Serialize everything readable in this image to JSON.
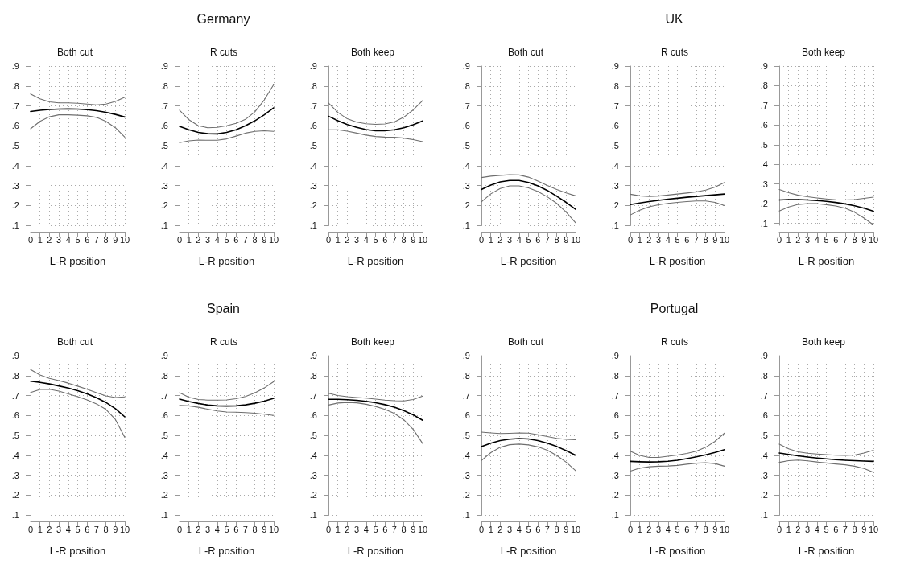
{
  "chart_data": [
    {
      "type": "line",
      "subtitle": "Both cut",
      "xlabel": "L-R position",
      "x": [
        0,
        1,
        2,
        3,
        4,
        5,
        6,
        7,
        8,
        9,
        10
      ],
      "xlim": [
        0,
        10
      ],
      "xticks": [
        0,
        1,
        2,
        3,
        4,
        5,
        6,
        7,
        8,
        9,
        10
      ],
      "ylim": [
        0.1,
        0.9
      ],
      "yticks": [
        {
          "value": 0.1,
          "label": ".1"
        },
        {
          "value": 0.2,
          "label": ".2"
        },
        {
          "value": 0.3,
          "label": ".3"
        },
        {
          "value": 0.4,
          "label": ".4"
        },
        {
          "value": 0.5,
          "label": ".5"
        },
        {
          "value": 0.6,
          "label": ".6"
        },
        {
          "value": 0.7,
          "label": ".7"
        },
        {
          "value": 0.8,
          "label": ".8"
        },
        {
          "value": 0.9,
          "label": ".9"
        }
      ],
      "grid": true,
      "marker": "none",
      "line_style": "solid",
      "series": [
        {
          "color": "#6e6e6e",
          "values": [
            0.585,
            0.622,
            0.645,
            0.655,
            0.655,
            0.653,
            0.65,
            0.642,
            0.622,
            0.59,
            0.543
          ]
        },
        {
          "color": "#6e6e6e",
          "values": [
            0.76,
            0.735,
            0.72,
            0.715,
            0.715,
            0.713,
            0.709,
            0.705,
            0.709,
            0.722,
            0.743
          ]
        },
        {
          "color": "#000000",
          "values": [
            0.672,
            0.678,
            0.682,
            0.684,
            0.685,
            0.684,
            0.681,
            0.676,
            0.668,
            0.657,
            0.644
          ]
        }
      ]
    },
    {
      "type": "line",
      "title": "Germany",
      "subtitle": "R cuts",
      "xlabel": "L-R position",
      "x": [
        0,
        1,
        2,
        3,
        4,
        5,
        6,
        7,
        8,
        9,
        10
      ],
      "xlim": [
        0,
        10
      ],
      "xticks": [
        0,
        1,
        2,
        3,
        4,
        5,
        6,
        7,
        8,
        9,
        10
      ],
      "ylim": [
        0.1,
        0.9
      ],
      "yticks": [
        {
          "value": 0.1,
          "label": ".1"
        },
        {
          "value": 0.2,
          "label": ".2"
        },
        {
          "value": 0.3,
          "label": ".3"
        },
        {
          "value": 0.4,
          "label": ".4"
        },
        {
          "value": 0.5,
          "label": ".5"
        },
        {
          "value": 0.6,
          "label": ".6"
        },
        {
          "value": 0.7,
          "label": ".7"
        },
        {
          "value": 0.8,
          "label": ".8"
        },
        {
          "value": 0.9,
          "label": ".9"
        }
      ],
      "grid": true,
      "marker": "none",
      "line_style": "solid",
      "series": [
        {
          "color": "#6e6e6e",
          "values": [
            0.515,
            0.524,
            0.528,
            0.527,
            0.527,
            0.534,
            0.548,
            0.563,
            0.572,
            0.575,
            0.572
          ]
        },
        {
          "color": "#6e6e6e",
          "values": [
            0.678,
            0.63,
            0.6,
            0.59,
            0.592,
            0.6,
            0.612,
            0.632,
            0.67,
            0.73,
            0.807
          ]
        },
        {
          "color": "#000000",
          "values": [
            0.597,
            0.58,
            0.567,
            0.56,
            0.559,
            0.567,
            0.58,
            0.6,
            0.625,
            0.655,
            0.69
          ]
        }
      ]
    },
    {
      "type": "line",
      "subtitle": "Both keep",
      "xlabel": "L-R position",
      "x": [
        0,
        1,
        2,
        3,
        4,
        5,
        6,
        7,
        8,
        9,
        10
      ],
      "xlim": [
        0,
        10
      ],
      "xticks": [
        0,
        1,
        2,
        3,
        4,
        5,
        6,
        7,
        8,
        9,
        10
      ],
      "ylim": [
        0.1,
        0.9
      ],
      "yticks": [
        {
          "value": 0.1,
          "label": ".1"
        },
        {
          "value": 0.2,
          "label": ".2"
        },
        {
          "value": 0.3,
          "label": ".3"
        },
        {
          "value": 0.4,
          "label": ".4"
        },
        {
          "value": 0.5,
          "label": ".5"
        },
        {
          "value": 0.6,
          "label": ".6"
        },
        {
          "value": 0.7,
          "label": ".7"
        },
        {
          "value": 0.8,
          "label": ".8"
        },
        {
          "value": 0.9,
          "label": ".9"
        }
      ],
      "grid": true,
      "marker": "none",
      "line_style": "solid",
      "series": [
        {
          "color": "#6e6e6e",
          "values": [
            0.58,
            0.58,
            0.573,
            0.563,
            0.553,
            0.546,
            0.543,
            0.542,
            0.538,
            0.53,
            0.52
          ]
        },
        {
          "color": "#6e6e6e",
          "values": [
            0.715,
            0.667,
            0.635,
            0.618,
            0.61,
            0.607,
            0.609,
            0.619,
            0.643,
            0.68,
            0.727
          ]
        },
        {
          "color": "#000000",
          "values": [
            0.648,
            0.625,
            0.606,
            0.592,
            0.581,
            0.575,
            0.575,
            0.58,
            0.59,
            0.605,
            0.624
          ]
        }
      ]
    },
    {
      "type": "line",
      "subtitle": "Both cut",
      "xlabel": "L-R position",
      "x": [
        0,
        1,
        2,
        3,
        4,
        5,
        6,
        7,
        8,
        9,
        10
      ],
      "xlim": [
        0,
        10
      ],
      "xticks": [
        0,
        1,
        2,
        3,
        4,
        5,
        6,
        7,
        8,
        9,
        10
      ],
      "ylim": [
        0.1,
        0.9
      ],
      "yticks": [
        {
          "value": 0.1,
          "label": ".1"
        },
        {
          "value": 0.2,
          "label": ".2"
        },
        {
          "value": 0.3,
          "label": ".3"
        },
        {
          "value": 0.4,
          "label": ".4"
        },
        {
          "value": 0.5,
          "label": ".5"
        },
        {
          "value": 0.6,
          "label": ".6"
        },
        {
          "value": 0.7,
          "label": ".7"
        },
        {
          "value": 0.8,
          "label": ".8"
        },
        {
          "value": 0.9,
          "label": ".9"
        }
      ],
      "grid": true,
      "marker": "none",
      "line_style": "solid",
      "series": [
        {
          "color": "#6e6e6e",
          "values": [
            0.218,
            0.258,
            0.285,
            0.298,
            0.298,
            0.288,
            0.27,
            0.243,
            0.21,
            0.166,
            0.113
          ]
        },
        {
          "color": "#6e6e6e",
          "values": [
            0.34,
            0.347,
            0.351,
            0.354,
            0.353,
            0.342,
            0.322,
            0.3,
            0.28,
            0.263,
            0.248
          ]
        },
        {
          "color": "#000000",
          "values": [
            0.28,
            0.302,
            0.318,
            0.325,
            0.325,
            0.315,
            0.298,
            0.275,
            0.246,
            0.215,
            0.18
          ]
        }
      ]
    },
    {
      "type": "line",
      "title": "UK",
      "subtitle": "R cuts",
      "xlabel": "L-R position",
      "x": [
        0,
        1,
        2,
        3,
        4,
        5,
        6,
        7,
        8,
        9,
        10
      ],
      "xlim": [
        0,
        10
      ],
      "xticks": [
        0,
        1,
        2,
        3,
        4,
        5,
        6,
        7,
        8,
        9,
        10
      ],
      "ylim": [
        0.1,
        0.9
      ],
      "yticks": [
        {
          "value": 0.1,
          "label": ".1"
        },
        {
          "value": 0.2,
          "label": ".2"
        },
        {
          "value": 0.3,
          "label": ".3"
        },
        {
          "value": 0.4,
          "label": ".4"
        },
        {
          "value": 0.5,
          "label": ".5"
        },
        {
          "value": 0.6,
          "label": ".6"
        },
        {
          "value": 0.7,
          "label": ".7"
        },
        {
          "value": 0.8,
          "label": ".8"
        },
        {
          "value": 0.9,
          "label": ".9"
        }
      ],
      "grid": true,
      "marker": "none",
      "line_style": "solid",
      "series": [
        {
          "color": "#6e6e6e",
          "values": [
            0.152,
            0.176,
            0.193,
            0.203,
            0.21,
            0.215,
            0.219,
            0.222,
            0.222,
            0.215,
            0.199
          ]
        },
        {
          "color": "#6e6e6e",
          "values": [
            0.256,
            0.248,
            0.245,
            0.247,
            0.252,
            0.257,
            0.262,
            0.268,
            0.277,
            0.292,
            0.315
          ]
        },
        {
          "color": "#000000",
          "values": [
            0.204,
            0.212,
            0.219,
            0.225,
            0.231,
            0.236,
            0.241,
            0.245,
            0.249,
            0.253,
            0.257
          ]
        }
      ]
    },
    {
      "type": "line",
      "subtitle": "Both keep",
      "xlabel": "L-R position",
      "x": [
        0,
        1,
        2,
        3,
        4,
        5,
        6,
        7,
        8,
        9,
        10
      ],
      "xlim": [
        0,
        10
      ],
      "xticks": [
        0,
        1,
        2,
        3,
        4,
        5,
        6,
        7,
        8,
        9,
        10
      ],
      "ylim": [
        0.09,
        0.9
      ],
      "yticks": [
        {
          "value": 0.1,
          "label": ".1"
        },
        {
          "value": 0.2,
          "label": ".2"
        },
        {
          "value": 0.3,
          "label": ".3"
        },
        {
          "value": 0.4,
          "label": ".4"
        },
        {
          "value": 0.5,
          "label": ".5"
        },
        {
          "value": 0.6,
          "label": ".6"
        },
        {
          "value": 0.7,
          "label": ".7"
        },
        {
          "value": 0.8,
          "label": ".8"
        },
        {
          "value": 0.9,
          "label": ".9"
        }
      ],
      "grid": true,
      "marker": "none",
      "line_style": "solid",
      "series": [
        {
          "color": "#6e6e6e",
          "values": [
            0.163,
            0.183,
            0.196,
            0.2,
            0.2,
            0.195,
            0.188,
            0.177,
            0.156,
            0.127,
            0.092
          ]
        },
        {
          "color": "#6e6e6e",
          "values": [
            0.272,
            0.256,
            0.243,
            0.235,
            0.229,
            0.224,
            0.22,
            0.219,
            0.221,
            0.227,
            0.233
          ]
        },
        {
          "color": "#000000",
          "values": [
            0.219,
            0.221,
            0.221,
            0.219,
            0.216,
            0.212,
            0.206,
            0.199,
            0.189,
            0.177,
            0.162
          ]
        }
      ]
    },
    {
      "type": "line",
      "subtitle": "Both cut",
      "xlabel": "L-R position",
      "x": [
        0,
        1,
        2,
        3,
        4,
        5,
        6,
        7,
        8,
        9,
        10
      ],
      "xlim": [
        0,
        10
      ],
      "xticks": [
        0,
        1,
        2,
        3,
        4,
        5,
        6,
        7,
        8,
        9,
        10
      ],
      "ylim": [
        0.1,
        0.9
      ],
      "yticks": [
        {
          "value": 0.1,
          "label": ".1"
        },
        {
          "value": 0.2,
          "label": ".2"
        },
        {
          "value": 0.3,
          "label": ".3"
        },
        {
          "value": 0.4,
          "label": ".4"
        },
        {
          "value": 0.5,
          "label": ".5"
        },
        {
          "value": 0.6,
          "label": ".6"
        },
        {
          "value": 0.7,
          "label": ".7"
        },
        {
          "value": 0.8,
          "label": ".8"
        },
        {
          "value": 0.9,
          "label": ".9"
        }
      ],
      "grid": true,
      "marker": "none",
      "line_style": "solid",
      "series": [
        {
          "color": "#6e6e6e",
          "values": [
            0.715,
            0.73,
            0.731,
            0.722,
            0.708,
            0.694,
            0.678,
            0.658,
            0.63,
            0.58,
            0.49
          ]
        },
        {
          "color": "#6e6e6e",
          "values": [
            0.83,
            0.803,
            0.786,
            0.775,
            0.762,
            0.747,
            0.731,
            0.714,
            0.698,
            0.69,
            0.693
          ]
        },
        {
          "color": "#000000",
          "values": [
            0.772,
            0.766,
            0.758,
            0.748,
            0.737,
            0.724,
            0.708,
            0.689,
            0.665,
            0.634,
            0.593
          ]
        }
      ]
    },
    {
      "type": "line",
      "title": "Spain",
      "subtitle": "R cuts",
      "xlabel": "L-R position",
      "x": [
        0,
        1,
        2,
        3,
        4,
        5,
        6,
        7,
        8,
        9,
        10
      ],
      "xlim": [
        0,
        10
      ],
      "xticks": [
        0,
        1,
        2,
        3,
        4,
        5,
        6,
        7,
        8,
        9,
        10
      ],
      "ylim": [
        0.1,
        0.9
      ],
      "yticks": [
        {
          "value": 0.1,
          "label": ".1"
        },
        {
          "value": 0.2,
          "label": ".2"
        },
        {
          "value": 0.3,
          "label": ".3"
        },
        {
          "value": 0.4,
          "label": ".4"
        },
        {
          "value": 0.5,
          "label": ".5"
        },
        {
          "value": 0.6,
          "label": ".6"
        },
        {
          "value": 0.7,
          "label": ".7"
        },
        {
          "value": 0.8,
          "label": ".8"
        },
        {
          "value": 0.9,
          "label": ".9"
        }
      ],
      "grid": true,
      "marker": "none",
      "line_style": "solid",
      "series": [
        {
          "color": "#6e6e6e",
          "values": [
            0.65,
            0.648,
            0.641,
            0.631,
            0.622,
            0.617,
            0.616,
            0.614,
            0.611,
            0.606,
            0.6
          ]
        },
        {
          "color": "#6e6e6e",
          "values": [
            0.714,
            0.691,
            0.68,
            0.677,
            0.677,
            0.678,
            0.684,
            0.695,
            0.713,
            0.738,
            0.77
          ]
        },
        {
          "color": "#000000",
          "values": [
            0.682,
            0.67,
            0.66,
            0.652,
            0.648,
            0.647,
            0.648,
            0.653,
            0.661,
            0.672,
            0.686
          ]
        }
      ]
    },
    {
      "type": "line",
      "subtitle": "Both keep",
      "xlabel": "L-R position",
      "x": [
        0,
        1,
        2,
        3,
        4,
        5,
        6,
        7,
        8,
        9,
        10
      ],
      "xlim": [
        0,
        10
      ],
      "xticks": [
        0,
        1,
        2,
        3,
        4,
        5,
        6,
        7,
        8,
        9,
        10
      ],
      "ylim": [
        0.1,
        0.9
      ],
      "yticks": [
        {
          "value": 0.1,
          "label": ".1"
        },
        {
          "value": 0.2,
          "label": ".2"
        },
        {
          "value": 0.3,
          "label": ".3"
        },
        {
          "value": 0.4,
          "label": ".4"
        },
        {
          "value": 0.5,
          "label": ".5"
        },
        {
          "value": 0.6,
          "label": ".6"
        },
        {
          "value": 0.7,
          "label": ".7"
        },
        {
          "value": 0.8,
          "label": ".8"
        },
        {
          "value": 0.9,
          "label": ".9"
        }
      ],
      "grid": true,
      "marker": "none",
      "line_style": "solid",
      "series": [
        {
          "color": "#6e6e6e",
          "values": [
            0.652,
            0.662,
            0.665,
            0.663,
            0.656,
            0.645,
            0.63,
            0.61,
            0.578,
            0.53,
            0.459
          ]
        },
        {
          "color": "#6e6e6e",
          "values": [
            0.711,
            0.7,
            0.694,
            0.69,
            0.687,
            0.682,
            0.677,
            0.674,
            0.673,
            0.68,
            0.697
          ]
        },
        {
          "color": "#000000",
          "values": [
            0.681,
            0.681,
            0.679,
            0.676,
            0.671,
            0.664,
            0.654,
            0.641,
            0.624,
            0.603,
            0.576
          ]
        }
      ]
    },
    {
      "type": "line",
      "subtitle": "Both cut",
      "xlabel": "L-R position",
      "x": [
        0,
        1,
        2,
        3,
        4,
        5,
        6,
        7,
        8,
        9,
        10
      ],
      "xlim": [
        0,
        10
      ],
      "xticks": [
        0,
        1,
        2,
        3,
        4,
        5,
        6,
        7,
        8,
        9,
        10
      ],
      "ylim": [
        0.1,
        0.9
      ],
      "yticks": [
        {
          "value": 0.1,
          "label": ".1"
        },
        {
          "value": 0.2,
          "label": ".2"
        },
        {
          "value": 0.3,
          "label": ".3"
        },
        {
          "value": 0.4,
          "label": ".4"
        },
        {
          "value": 0.5,
          "label": ".5"
        },
        {
          "value": 0.6,
          "label": ".6"
        },
        {
          "value": 0.7,
          "label": ".7"
        },
        {
          "value": 0.8,
          "label": ".8"
        },
        {
          "value": 0.9,
          "label": ".9"
        }
      ],
      "grid": true,
      "marker": "none",
      "line_style": "solid",
      "series": [
        {
          "color": "#6e6e6e",
          "values": [
            0.373,
            0.413,
            0.44,
            0.453,
            0.456,
            0.452,
            0.442,
            0.425,
            0.399,
            0.365,
            0.323
          ]
        },
        {
          "color": "#6e6e6e",
          "values": [
            0.516,
            0.512,
            0.509,
            0.51,
            0.512,
            0.511,
            0.503,
            0.494,
            0.485,
            0.48,
            0.478
          ]
        },
        {
          "color": "#000000",
          "values": [
            0.443,
            0.461,
            0.474,
            0.481,
            0.484,
            0.482,
            0.474,
            0.461,
            0.444,
            0.423,
            0.4
          ]
        }
      ]
    },
    {
      "type": "line",
      "title": "Portugal",
      "subtitle": "R cuts",
      "xlabel": "L-R position",
      "x": [
        0,
        1,
        2,
        3,
        4,
        5,
        6,
        7,
        8,
        9,
        10
      ],
      "xlim": [
        0,
        10
      ],
      "xticks": [
        0,
        1,
        2,
        3,
        4,
        5,
        6,
        7,
        8,
        9,
        10
      ],
      "ylim": [
        0.1,
        0.9
      ],
      "yticks": [
        {
          "value": 0.1,
          "label": ".1"
        },
        {
          "value": 0.2,
          "label": ".2"
        },
        {
          "value": 0.3,
          "label": ".3"
        },
        {
          "value": 0.4,
          "label": ".4"
        },
        {
          "value": 0.5,
          "label": ".5"
        },
        {
          "value": 0.6,
          "label": ".6"
        },
        {
          "value": 0.7,
          "label": ".7"
        },
        {
          "value": 0.8,
          "label": ".8"
        },
        {
          "value": 0.9,
          "label": ".9"
        }
      ],
      "grid": true,
      "marker": "none",
      "line_style": "solid",
      "series": [
        {
          "color": "#6e6e6e",
          "values": [
            0.32,
            0.335,
            0.342,
            0.345,
            0.346,
            0.349,
            0.355,
            0.36,
            0.362,
            0.358,
            0.345
          ]
        },
        {
          "color": "#6e6e6e",
          "values": [
            0.42,
            0.399,
            0.389,
            0.389,
            0.395,
            0.401,
            0.409,
            0.42,
            0.44,
            0.47,
            0.511
          ]
        },
        {
          "color": "#000000",
          "values": [
            0.369,
            0.367,
            0.366,
            0.367,
            0.37,
            0.375,
            0.383,
            0.392,
            0.402,
            0.414,
            0.428
          ]
        }
      ]
    },
    {
      "type": "line",
      "subtitle": "Both keep",
      "xlabel": "L-R position",
      "x": [
        0,
        1,
        2,
        3,
        4,
        5,
        6,
        7,
        8,
        9,
        10
      ],
      "xlim": [
        0,
        10
      ],
      "xticks": [
        0,
        1,
        2,
        3,
        4,
        5,
        6,
        7,
        8,
        9,
        10
      ],
      "ylim": [
        0.1,
        0.9
      ],
      "yticks": [
        {
          "value": 0.1,
          "label": ".1"
        },
        {
          "value": 0.2,
          "label": ".2"
        },
        {
          "value": 0.3,
          "label": ".3"
        },
        {
          "value": 0.4,
          "label": ".4"
        },
        {
          "value": 0.5,
          "label": ".5"
        },
        {
          "value": 0.6,
          "label": ".6"
        },
        {
          "value": 0.7,
          "label": ".7"
        },
        {
          "value": 0.8,
          "label": ".8"
        },
        {
          "value": 0.9,
          "label": ".9"
        }
      ],
      "grid": true,
      "marker": "none",
      "line_style": "solid",
      "series": [
        {
          "color": "#6e6e6e",
          "values": [
            0.364,
            0.373,
            0.376,
            0.372,
            0.366,
            0.361,
            0.356,
            0.352,
            0.345,
            0.333,
            0.314
          ]
        },
        {
          "color": "#6e6e6e",
          "values": [
            0.456,
            0.432,
            0.417,
            0.41,
            0.406,
            0.403,
            0.4,
            0.399,
            0.401,
            0.411,
            0.425
          ]
        },
        {
          "color": "#000000",
          "values": [
            0.411,
            0.404,
            0.397,
            0.391,
            0.386,
            0.382,
            0.378,
            0.375,
            0.373,
            0.371,
            0.369
          ]
        }
      ]
    }
  ]
}
